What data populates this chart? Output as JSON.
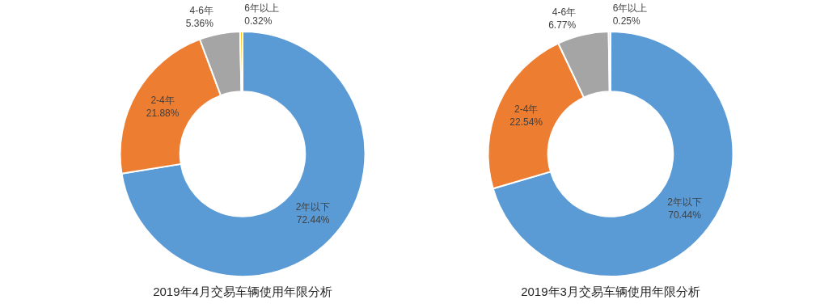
{
  "chart_data": [
    {
      "type": "donut",
      "title": "2019年4月交易车辆使用年限分析",
      "categories": [
        "2年以下",
        "2-4年",
        "4-6年",
        "6年以上"
      ],
      "values": [
        72.44,
        21.88,
        5.36,
        0.32
      ],
      "colors": [
        "#5b9bd5",
        "#ed7d31",
        "#a5a5a5",
        "#ffc000"
      ],
      "value_labels": [
        "72.44%",
        "21.88%",
        "5.36%",
        "0.32%"
      ]
    },
    {
      "type": "donut",
      "title": "2019年3月交易车辆使用年限分析",
      "categories": [
        "2年以下",
        "2-4年",
        "4-6年",
        "6年以上"
      ],
      "values": [
        70.44,
        22.54,
        6.77,
        0.25
      ],
      "colors": [
        "#5b9bd5",
        "#ed7d31",
        "#a5a5a5",
        "#ffc000"
      ],
      "value_labels": [
        "70.44%",
        "22.54%",
        "6.77%",
        "0.25%"
      ]
    }
  ]
}
